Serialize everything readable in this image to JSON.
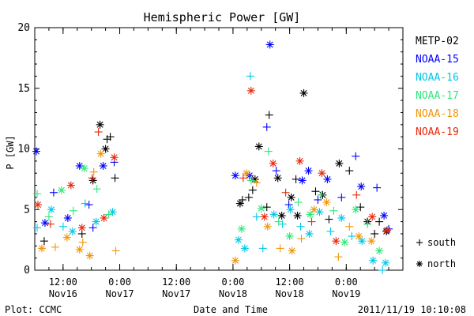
{
  "chart_data": {
    "type": "scatter",
    "title": "Hemispheric Power [GW]",
    "ylabel": "P [GW]",
    "xlabel": "Date and Time",
    "ylim": [
      0,
      20
    ],
    "yticks": [
      0,
      5,
      10,
      15,
      20
    ],
    "xlim": [
      "2011-11-16T06:00",
      "2011-11-19T12:00"
    ],
    "xticks": [
      {
        "time": "2011-11-16T12:00",
        "line1": "12:00",
        "line2": "Nov16"
      },
      {
        "time": "2011-11-17T00:00",
        "line1": "0:00",
        "line2": "Nov17"
      },
      {
        "time": "2011-11-17T12:00",
        "line1": "12:00",
        "line2": "Nov17"
      },
      {
        "time": "2011-11-18T00:00",
        "line1": "0:00",
        "line2": "Nov18"
      },
      {
        "time": "2011-11-18T12:00",
        "line1": "12:00",
        "line2": "Nov18"
      },
      {
        "time": "2011-11-19T00:00",
        "line1": "0:00",
        "line2": "Nov19"
      }
    ],
    "marker_legend": [
      {
        "symbol": "+",
        "label": "south"
      },
      {
        "symbol": "*",
        "label": "north"
      }
    ],
    "series": [
      {
        "name": "METP-02",
        "color": "#000000",
        "points": [
          {
            "t": "2011-11-16T08:00",
            "v": 2.4,
            "h": "S"
          },
          {
            "t": "2011-11-16T16:00",
            "v": 3.0,
            "h": "S"
          },
          {
            "t": "2011-11-16T18:20",
            "v": 7.4,
            "h": "N"
          },
          {
            "t": "2011-11-16T19:50",
            "v": 12.0,
            "h": "N"
          },
          {
            "t": "2011-11-16T21:00",
            "v": 10.0,
            "h": "N"
          },
          {
            "t": "2011-11-16T21:20",
            "v": 10.8,
            "h": "S"
          },
          {
            "t": "2011-11-16T22:00",
            "v": 11.0,
            "h": "S"
          },
          {
            "t": "2011-11-16T23:00",
            "v": 7.6,
            "h": "S"
          },
          {
            "t": "2011-11-18T01:30",
            "v": 5.5,
            "h": "N"
          },
          {
            "t": "2011-11-18T02:00",
            "v": 5.8,
            "h": "S"
          },
          {
            "t": "2011-11-18T03:20",
            "v": 6.0,
            "h": "S"
          },
          {
            "t": "2011-11-18T04:10",
            "v": 6.6,
            "h": "S"
          },
          {
            "t": "2011-11-18T04:40",
            "v": 7.5,
            "h": "N"
          },
          {
            "t": "2011-11-18T05:30",
            "v": 10.2,
            "h": "N"
          },
          {
            "t": "2011-11-18T07:40",
            "v": 12.8,
            "h": "S"
          },
          {
            "t": "2011-11-18T07:10",
            "v": 5.2,
            "h": "S"
          },
          {
            "t": "2011-11-18T09:30",
            "v": 7.6,
            "h": "N"
          },
          {
            "t": "2011-11-18T10:20",
            "v": 4.5,
            "h": "N"
          },
          {
            "t": "2011-11-18T12:20",
            "v": 6.0,
            "h": "N"
          },
          {
            "t": "2011-11-18T13:20",
            "v": 7.5,
            "h": "S"
          },
          {
            "t": "2011-11-18T13:40",
            "v": 4.5,
            "h": "N"
          },
          {
            "t": "2011-11-18T15:00",
            "v": 14.6,
            "h": "N"
          },
          {
            "t": "2011-11-18T17:30",
            "v": 6.5,
            "h": "S"
          },
          {
            "t": "2011-11-18T19:00",
            "v": 6.2,
            "h": "N"
          },
          {
            "t": "2011-11-18T20:20",
            "v": 4.2,
            "h": "S"
          },
          {
            "t": "2011-11-18T22:30",
            "v": 8.8,
            "h": "N"
          },
          {
            "t": "2011-11-19T00:40",
            "v": 8.2,
            "h": "S"
          },
          {
            "t": "2011-11-19T03:00",
            "v": 5.2,
            "h": "S"
          },
          {
            "t": "2011-11-19T04:30",
            "v": 4.0,
            "h": "N"
          },
          {
            "t": "2011-11-19T06:00",
            "v": 3.0,
            "h": "S"
          },
          {
            "t": "2011-11-19T07:00",
            "v": 4.0,
            "h": "S"
          },
          {
            "t": "2011-11-19T08:30",
            "v": 3.2,
            "h": "N"
          }
        ]
      },
      {
        "name": "NOAA-15",
        "color": "#0000ff",
        "points": [
          {
            "t": "2011-11-16T06:20",
            "v": 9.8,
            "h": "N"
          },
          {
            "t": "2011-11-16T08:10",
            "v": 3.9,
            "h": "N"
          },
          {
            "t": "2011-11-16T10:00",
            "v": 6.4,
            "h": "S"
          },
          {
            "t": "2011-11-16T13:00",
            "v": 4.3,
            "h": "N"
          },
          {
            "t": "2011-11-16T15:30",
            "v": 8.6,
            "h": "N"
          },
          {
            "t": "2011-11-16T17:30",
            "v": 5.4,
            "h": "S"
          },
          {
            "t": "2011-11-16T18:20",
            "v": 3.5,
            "h": "S"
          },
          {
            "t": "2011-11-16T20:30",
            "v": 8.6,
            "h": "N"
          },
          {
            "t": "2011-11-16T22:50",
            "v": 8.9,
            "h": "S"
          },
          {
            "t": "2011-11-18T00:30",
            "v": 7.8,
            "h": "N"
          },
          {
            "t": "2011-11-18T03:30",
            "v": 7.8,
            "h": "N"
          },
          {
            "t": "2011-11-18T07:10",
            "v": 11.8,
            "h": "S"
          },
          {
            "t": "2011-11-18T07:50",
            "v": 18.6,
            "h": "N"
          },
          {
            "t": "2011-11-18T09:10",
            "v": 8.2,
            "h": "S"
          },
          {
            "t": "2011-11-18T11:50",
            "v": 5.4,
            "h": "S"
          },
          {
            "t": "2011-11-18T14:40",
            "v": 7.4,
            "h": "N"
          },
          {
            "t": "2011-11-18T16:00",
            "v": 8.2,
            "h": "N"
          },
          {
            "t": "2011-11-18T18:00",
            "v": 5.8,
            "h": "S"
          },
          {
            "t": "2011-11-18T20:00",
            "v": 7.5,
            "h": "N"
          },
          {
            "t": "2011-11-18T23:00",
            "v": 6.0,
            "h": "S"
          },
          {
            "t": "2011-11-19T02:00",
            "v": 9.4,
            "h": "S"
          },
          {
            "t": "2011-11-19T03:10",
            "v": 6.9,
            "h": "N"
          },
          {
            "t": "2011-11-19T06:30",
            "v": 6.8,
            "h": "S"
          },
          {
            "t": "2011-11-19T08:00",
            "v": 4.5,
            "h": "N"
          },
          {
            "t": "2011-11-19T09:00",
            "v": 3.4,
            "h": "S"
          }
        ]
      },
      {
        "name": "NOAA-16",
        "color": "#00c8e6",
        "points": [
          {
            "t": "2011-11-16T06:30",
            "v": 3.5,
            "h": "S"
          },
          {
            "t": "2011-11-16T09:30",
            "v": 5.0,
            "h": "N"
          },
          {
            "t": "2011-11-16T12:00",
            "v": 3.6,
            "h": "S"
          },
          {
            "t": "2011-11-16T14:00",
            "v": 3.2,
            "h": "N"
          },
          {
            "t": "2011-11-16T16:40",
            "v": 5.5,
            "h": "S"
          },
          {
            "t": "2011-11-16T19:00",
            "v": 4.0,
            "h": "N"
          },
          {
            "t": "2011-11-16T22:30",
            "v": 4.8,
            "h": "N"
          },
          {
            "t": "2011-11-18T01:10",
            "v": 2.5,
            "h": "N"
          },
          {
            "t": "2011-11-18T02:30",
            "v": 1.8,
            "h": "N"
          },
          {
            "t": "2011-11-18T03:40",
            "v": 16.0,
            "h": "S"
          },
          {
            "t": "2011-11-18T05:00",
            "v": 4.4,
            "h": "S"
          },
          {
            "t": "2011-11-18T06:20",
            "v": 1.8,
            "h": "S"
          },
          {
            "t": "2011-11-18T08:40",
            "v": 4.6,
            "h": "N"
          },
          {
            "t": "2011-11-18T10:30",
            "v": 3.8,
            "h": "S"
          },
          {
            "t": "2011-11-18T12:10",
            "v": 5.0,
            "h": "N"
          },
          {
            "t": "2011-11-18T14:20",
            "v": 3.6,
            "h": "S"
          },
          {
            "t": "2011-11-18T16:10",
            "v": 3.0,
            "h": "N"
          },
          {
            "t": "2011-11-18T18:20",
            "v": 4.8,
            "h": "N"
          },
          {
            "t": "2011-11-18T20:40",
            "v": 3.2,
            "h": "S"
          },
          {
            "t": "2011-11-18T23:00",
            "v": 4.3,
            "h": "N"
          },
          {
            "t": "2011-11-19T01:10",
            "v": 2.8,
            "h": "S"
          },
          {
            "t": "2011-11-19T03:20",
            "v": 2.4,
            "h": "N"
          },
          {
            "t": "2011-11-19T05:40",
            "v": 0.8,
            "h": "N"
          },
          {
            "t": "2011-11-19T08:20",
            "v": 0.6,
            "h": "N"
          },
          {
            "t": "2011-11-19T07:40",
            "v": 0.0,
            "h": "S"
          }
        ]
      },
      {
        "name": "NOAA-17",
        "color": "#2ee67a",
        "points": [
          {
            "t": "2011-11-16T06:30",
            "v": 6.3,
            "h": "S"
          },
          {
            "t": "2011-11-16T09:00",
            "v": 4.4,
            "h": "S"
          },
          {
            "t": "2011-11-16T11:40",
            "v": 6.6,
            "h": "N"
          },
          {
            "t": "2011-11-16T14:10",
            "v": 4.9,
            "h": "S"
          },
          {
            "t": "2011-11-16T16:30",
            "v": 8.4,
            "h": "N"
          },
          {
            "t": "2011-11-16T19:10",
            "v": 6.7,
            "h": "S"
          },
          {
            "t": "2011-11-16T21:40",
            "v": 4.6,
            "h": "S"
          },
          {
            "t": "2011-11-18T01:50",
            "v": 3.4,
            "h": "N"
          },
          {
            "t": "2011-11-18T03:50",
            "v": 7.4,
            "h": "S"
          },
          {
            "t": "2011-11-18T06:00",
            "v": 5.1,
            "h": "N"
          },
          {
            "t": "2011-11-18T07:30",
            "v": 9.8,
            "h": "S"
          },
          {
            "t": "2011-11-18T09:40",
            "v": 4.0,
            "h": "S"
          },
          {
            "t": "2011-11-18T12:00",
            "v": 2.8,
            "h": "N"
          },
          {
            "t": "2011-11-18T13:50",
            "v": 5.6,
            "h": "S"
          },
          {
            "t": "2011-11-18T16:20",
            "v": 4.6,
            "h": "N"
          },
          {
            "t": "2011-11-18T18:40",
            "v": 6.2,
            "h": "S"
          },
          {
            "t": "2011-11-18T21:20",
            "v": 4.9,
            "h": "S"
          },
          {
            "t": "2011-11-18T23:40",
            "v": 2.3,
            "h": "N"
          },
          {
            "t": "2011-11-19T02:00",
            "v": 5.0,
            "h": "N"
          },
          {
            "t": "2011-11-19T04:30",
            "v": 3.8,
            "h": "S"
          },
          {
            "t": "2011-11-19T07:00",
            "v": 1.6,
            "h": "N"
          }
        ]
      },
      {
        "name": "NOAA-18",
        "color": "#f0960a",
        "points": [
          {
            "t": "2011-11-16T07:30",
            "v": 1.8,
            "h": "N"
          },
          {
            "t": "2011-11-16T10:20",
            "v": 1.9,
            "h": "S"
          },
          {
            "t": "2011-11-16T12:50",
            "v": 2.7,
            "h": "N"
          },
          {
            "t": "2011-11-16T15:30",
            "v": 1.7,
            "h": "N"
          },
          {
            "t": "2011-11-16T16:10",
            "v": 2.3,
            "h": "S"
          },
          {
            "t": "2011-11-16T17:40",
            "v": 1.2,
            "h": "N"
          },
          {
            "t": "2011-11-16T18:30",
            "v": 8.1,
            "h": "S"
          },
          {
            "t": "2011-11-16T20:00",
            "v": 9.6,
            "h": "N"
          },
          {
            "t": "2011-11-16T23:10",
            "v": 1.6,
            "h": "S"
          },
          {
            "t": "2011-11-18T00:30",
            "v": 0.8,
            "h": "N"
          },
          {
            "t": "2011-11-18T02:50",
            "v": 8.0,
            "h": "N"
          },
          {
            "t": "2011-11-18T05:00",
            "v": 7.2,
            "h": "S"
          },
          {
            "t": "2011-11-18T07:20",
            "v": 3.6,
            "h": "N"
          },
          {
            "t": "2011-11-18T10:00",
            "v": 1.8,
            "h": "S"
          },
          {
            "t": "2011-11-18T12:30",
            "v": 1.6,
            "h": "N"
          },
          {
            "t": "2011-11-18T14:30",
            "v": 2.6,
            "h": "S"
          },
          {
            "t": "2011-11-18T17:10",
            "v": 5.0,
            "h": "N"
          },
          {
            "t": "2011-11-18T19:50",
            "v": 5.6,
            "h": "N"
          },
          {
            "t": "2011-11-18T22:20",
            "v": 1.1,
            "h": "S"
          },
          {
            "t": "2011-11-19T00:40",
            "v": 3.6,
            "h": "S"
          },
          {
            "t": "2011-11-19T02:40",
            "v": 2.8,
            "h": "N"
          },
          {
            "t": "2011-11-19T05:20",
            "v": 2.4,
            "h": "N"
          }
        ]
      },
      {
        "name": "NOAA-19",
        "color": "#e6280a",
        "points": [
          {
            "t": "2011-11-16T06:40",
            "v": 5.4,
            "h": "N"
          },
          {
            "t": "2011-11-16T09:20",
            "v": 3.8,
            "h": "S"
          },
          {
            "t": "2011-11-16T13:40",
            "v": 7.0,
            "h": "N"
          },
          {
            "t": "2011-11-16T16:00",
            "v": 3.5,
            "h": "N"
          },
          {
            "t": "2011-11-16T18:10",
            "v": 7.6,
            "h": "S"
          },
          {
            "t": "2011-11-16T19:30",
            "v": 11.4,
            "h": "S"
          },
          {
            "t": "2011-11-16T20:40",
            "v": 4.3,
            "h": "N"
          },
          {
            "t": "2011-11-16T22:50",
            "v": 9.3,
            "h": "N"
          },
          {
            "t": "2011-11-18T02:10",
            "v": 7.6,
            "h": "S"
          },
          {
            "t": "2011-11-18T03:50",
            "v": 14.8,
            "h": "N"
          },
          {
            "t": "2011-11-18T06:40",
            "v": 4.4,
            "h": "N"
          },
          {
            "t": "2011-11-18T08:30",
            "v": 8.8,
            "h": "N"
          },
          {
            "t": "2011-11-18T11:10",
            "v": 6.4,
            "h": "S"
          },
          {
            "t": "2011-11-18T14:10",
            "v": 9.0,
            "h": "N"
          },
          {
            "t": "2011-11-18T16:40",
            "v": 4.0,
            "h": "S"
          },
          {
            "t": "2011-11-18T18:50",
            "v": 8.0,
            "h": "N"
          },
          {
            "t": "2011-11-18T21:50",
            "v": 2.4,
            "h": "N"
          },
          {
            "t": "2011-11-19T02:10",
            "v": 6.2,
            "h": "S"
          },
          {
            "t": "2011-11-19T05:30",
            "v": 4.4,
            "h": "N"
          },
          {
            "t": "2011-11-19T08:40",
            "v": 3.3,
            "h": "N"
          }
        ]
      }
    ]
  },
  "footer": {
    "plot_credit": "Plot: CCMC",
    "timestamp": "2011/11/19 10:10:08"
  }
}
